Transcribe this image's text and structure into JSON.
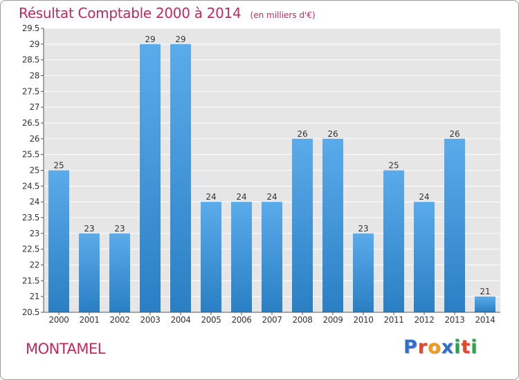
{
  "header": {
    "title": "Résultat Comptable 2000 à 2014",
    "subtitle": "(en milliers d'€)"
  },
  "footer": {
    "commune": "MONTAMEL",
    "logo_text": "Proxiti"
  },
  "colors": {
    "title": "#c1285b",
    "bar_top": "#5aabea",
    "bar_bottom": "#2a7fc4",
    "plot_bg": "#e6e6e6",
    "logo_letters": [
      "#2f6fd0",
      "#e2462b",
      "#f39a1a",
      "#2f6fd0",
      "#2aa14a",
      "#e2462b",
      "#2aa14a"
    ]
  },
  "chart_data": {
    "type": "bar",
    "categories": [
      "2000",
      "2001",
      "2002",
      "2003",
      "2004",
      "2005",
      "2006",
      "2007",
      "2008",
      "2009",
      "2010",
      "2011",
      "2012",
      "2013",
      "2014"
    ],
    "values": [
      25,
      23,
      23,
      29,
      29,
      24,
      24,
      24,
      26,
      26,
      23,
      25,
      24,
      26,
      21
    ],
    "value_labels": [
      "25",
      "23",
      "23",
      "29",
      "29",
      "24",
      "24",
      "24",
      "26",
      "26",
      "23",
      "25",
      "24",
      "26",
      "21"
    ],
    "yticks": [
      "20.5",
      "21",
      "21.5",
      "22",
      "22.5",
      "23",
      "23.5",
      "24",
      "24.5",
      "25",
      "25.5",
      "26",
      "26.5",
      "27",
      "27.5",
      "28",
      "28.5",
      "29",
      "29.5"
    ],
    "ylim": [
      20.5,
      29.5
    ],
    "grid": true,
    "title": "Résultat Comptable 2000 à 2014",
    "xlabel": "",
    "ylabel": ""
  }
}
